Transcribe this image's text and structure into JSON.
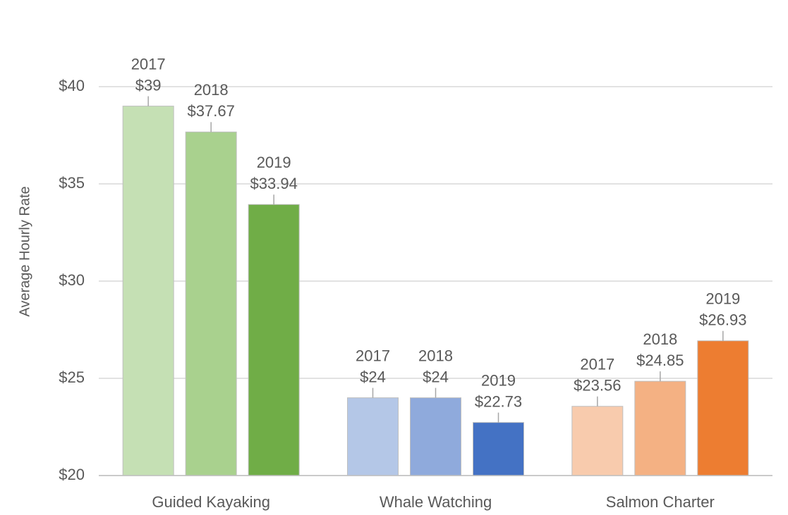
{
  "chart_data": {
    "type": "bar",
    "y_label": "Average Hourly Rate",
    "categories": [
      "Guided Kayaking",
      "Whale Watching",
      "Salmon Charter"
    ],
    "series": [
      {
        "name": "2017",
        "colors": [
          "#c5e0b4",
          "#b4c7e7",
          "#f8cbad"
        ],
        "values": [
          39,
          24,
          23.56
        ],
        "value_labels": [
          "$39",
          "$24",
          "$23.56"
        ]
      },
      {
        "name": "2018",
        "colors": [
          "#a9d18e",
          "#8faadc",
          "#f4b183"
        ],
        "values": [
          37.67,
          24,
          24.85
        ],
        "value_labels": [
          "$37.67",
          "$24",
          "$24.85"
        ]
      },
      {
        "name": "2019",
        "colors": [
          "#70ad47",
          "#4472c4",
          "#ed7d31"
        ],
        "values": [
          33.94,
          22.73,
          26.93
        ],
        "value_labels": [
          "$33.94",
          "$22.73",
          "$26.93"
        ]
      }
    ],
    "ylim": [
      20,
      40
    ],
    "yticks": [
      {
        "value": 20,
        "label": "$20"
      },
      {
        "value": 25,
        "label": "$25"
      },
      {
        "value": 30,
        "label": "$30"
      },
      {
        "value": 35,
        "label": "$35"
      },
      {
        "value": 40,
        "label": "$40"
      }
    ],
    "grid": true
  }
}
